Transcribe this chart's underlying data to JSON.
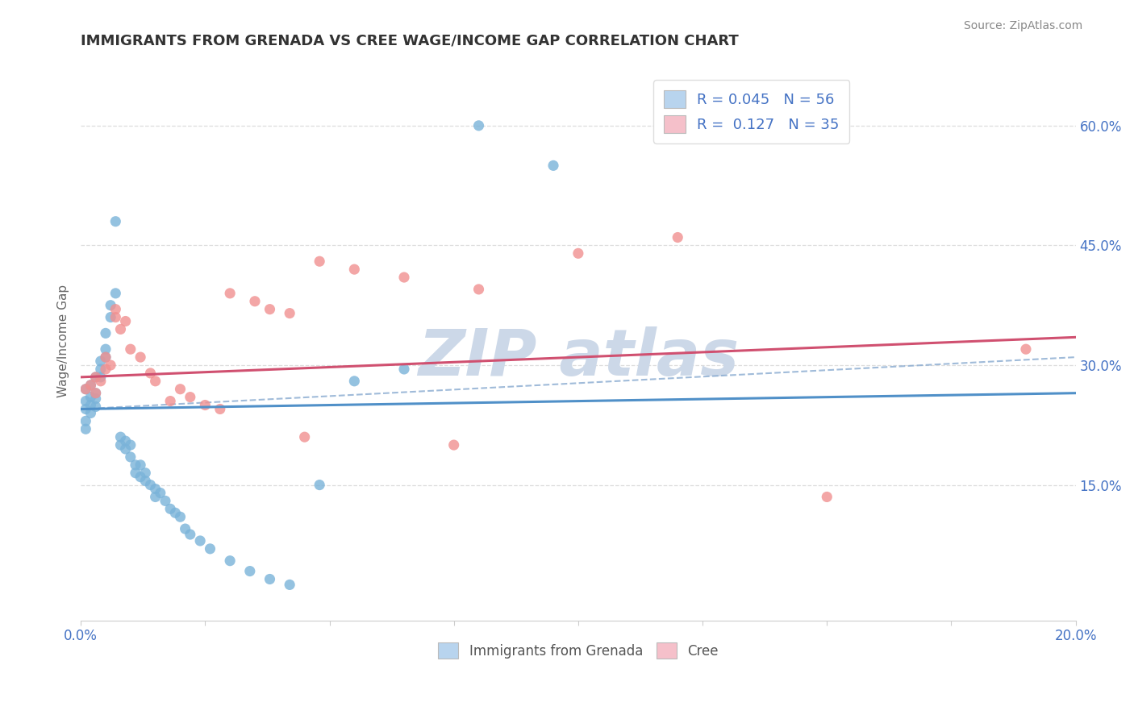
{
  "title": "IMMIGRANTS FROM GRENADA VS CREE WAGE/INCOME GAP CORRELATION CHART",
  "source": "Source: ZipAtlas.com",
  "ylabel": "Wage/Income Gap",
  "xlim": [
    0.0,
    0.2
  ],
  "ylim": [
    -0.02,
    0.68
  ],
  "R_blue": 0.045,
  "N_blue": 56,
  "R_pink": 0.127,
  "N_pink": 35,
  "blue_color": "#7ab3d9",
  "pink_color": "#f09090",
  "legend_blue_face": "#b8d4ee",
  "legend_pink_face": "#f5c0ca",
  "trend_blue_color": "#5090c8",
  "trend_pink_color": "#d05070",
  "dash_color": "#88aad0",
  "watermark_color": "#ccd8e8",
  "blue_trend": [
    0.245,
    0.265
  ],
  "pink_trend": [
    0.285,
    0.335
  ],
  "dash_line": [
    0.245,
    0.31
  ],
  "blue_scatter_x": [
    0.001,
    0.001,
    0.001,
    0.001,
    0.001,
    0.002,
    0.002,
    0.002,
    0.002,
    0.003,
    0.003,
    0.003,
    0.003,
    0.004,
    0.004,
    0.004,
    0.005,
    0.005,
    0.005,
    0.006,
    0.006,
    0.007,
    0.007,
    0.008,
    0.008,
    0.009,
    0.009,
    0.01,
    0.01,
    0.011,
    0.011,
    0.012,
    0.012,
    0.013,
    0.013,
    0.014,
    0.015,
    0.015,
    0.016,
    0.017,
    0.018,
    0.019,
    0.02,
    0.021,
    0.022,
    0.024,
    0.026,
    0.03,
    0.034,
    0.038,
    0.042,
    0.048,
    0.055,
    0.065,
    0.08,
    0.095
  ],
  "blue_scatter_y": [
    0.27,
    0.255,
    0.245,
    0.23,
    0.22,
    0.26,
    0.25,
    0.24,
    0.275,
    0.265,
    0.258,
    0.248,
    0.285,
    0.305,
    0.295,
    0.285,
    0.32,
    0.31,
    0.34,
    0.36,
    0.375,
    0.39,
    0.48,
    0.21,
    0.2,
    0.205,
    0.195,
    0.2,
    0.185,
    0.175,
    0.165,
    0.175,
    0.16,
    0.165,
    0.155,
    0.15,
    0.145,
    0.135,
    0.14,
    0.13,
    0.12,
    0.115,
    0.11,
    0.095,
    0.088,
    0.08,
    0.07,
    0.055,
    0.042,
    0.032,
    0.025,
    0.15,
    0.28,
    0.295,
    0.6,
    0.55
  ],
  "pink_scatter_x": [
    0.001,
    0.002,
    0.003,
    0.003,
    0.004,
    0.005,
    0.005,
    0.006,
    0.007,
    0.007,
    0.008,
    0.009,
    0.01,
    0.012,
    0.014,
    0.015,
    0.018,
    0.02,
    0.022,
    0.025,
    0.028,
    0.03,
    0.035,
    0.038,
    0.042,
    0.048,
    0.055,
    0.065,
    0.08,
    0.1,
    0.12,
    0.15,
    0.19,
    0.075,
    0.045
  ],
  "pink_scatter_y": [
    0.27,
    0.275,
    0.265,
    0.285,
    0.28,
    0.295,
    0.31,
    0.3,
    0.36,
    0.37,
    0.345,
    0.355,
    0.32,
    0.31,
    0.29,
    0.28,
    0.255,
    0.27,
    0.26,
    0.25,
    0.245,
    0.39,
    0.38,
    0.37,
    0.365,
    0.43,
    0.42,
    0.41,
    0.395,
    0.44,
    0.46,
    0.135,
    0.32,
    0.2,
    0.21
  ]
}
